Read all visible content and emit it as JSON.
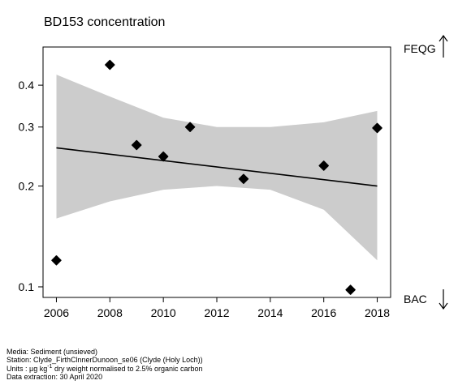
{
  "chart_data": {
    "type": "scatter",
    "title": "BD153 concentration",
    "y_scale": "log",
    "xlim": [
      2005.5,
      2018.5
    ],
    "ylim": [
      0.093,
      0.52
    ],
    "xticks": [
      2006,
      2008,
      2010,
      2012,
      2014,
      2016,
      2018
    ],
    "xtick_labels": [
      "2006",
      "2008",
      "2010",
      "2012",
      "2014",
      "2016",
      "2018"
    ],
    "yticks": [
      0.1,
      0.2,
      0.3,
      0.4
    ],
    "ytick_labels": [
      "0.1",
      "0.2",
      "0.3",
      "0.4"
    ],
    "grid": false,
    "points": [
      {
        "x": 2006,
        "y": 0.12
      },
      {
        "x": 2008,
        "y": 0.46
      },
      {
        "x": 2009,
        "y": 0.265
      },
      {
        "x": 2010,
        "y": 0.245
      },
      {
        "x": 2011,
        "y": 0.3
      },
      {
        "x": 2013,
        "y": 0.21
      },
      {
        "x": 2016,
        "y": 0.23
      },
      {
        "x": 2017,
        "y": 0.098
      },
      {
        "x": 2018,
        "y": 0.298
      }
    ],
    "trend": {
      "x": [
        2006,
        2018
      ],
      "y": [
        0.26,
        0.2
      ]
    },
    "confidence_band": {
      "x": [
        2006,
        2008,
        2010,
        2012,
        2014,
        2016,
        2018
      ],
      "upper": [
        0.43,
        0.37,
        0.32,
        0.3,
        0.3,
        0.31,
        0.335
      ],
      "lower": [
        0.16,
        0.18,
        0.195,
        0.2,
        0.195,
        0.17,
        0.12
      ]
    },
    "reference_lines": [
      {
        "label": "FEQG",
        "arrow": "up"
      },
      {
        "label": "BAC",
        "arrow": "down"
      }
    ],
    "colors": {
      "band": "#cccccc",
      "line": "#000000",
      "points": "#000000"
    }
  },
  "footer": {
    "media": "Media: Sediment (unsieved)",
    "station": "Station: Clyde_FirthClnnerDunoon_se06 (Clyde (Holy Loch))",
    "units_prefix": "Units : µg kg",
    "units_exp": "-1",
    "units_suffix": " dry weight normalised to 2.5% organic carbon",
    "extraction": "Data extraction: 30 April 2020"
  }
}
